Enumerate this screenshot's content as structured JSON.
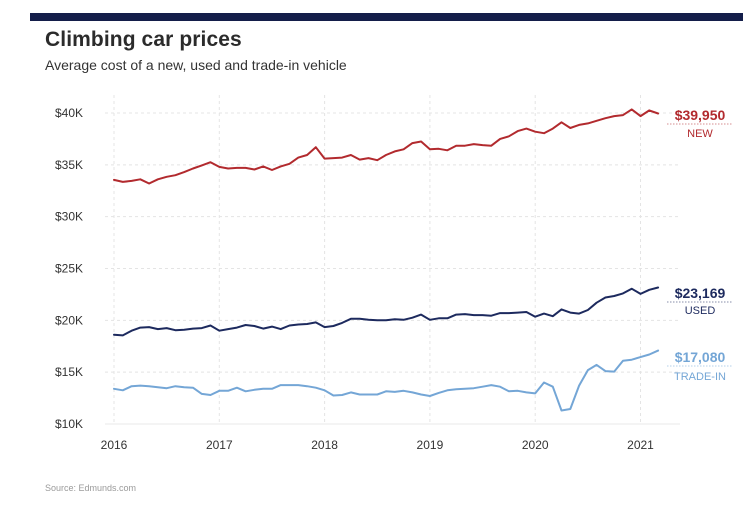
{
  "header": {
    "title": "Climbing car prices",
    "subtitle": "Average cost of a new, used and trade-in vehicle"
  },
  "footer": {
    "source": "Source: Edmunds.com"
  },
  "colors": {
    "topbar": "#141e4a",
    "new": "#b22a2e",
    "used": "#1d2a5e",
    "trade_in": "#74a6d6",
    "grid": "#e4e4e4"
  },
  "chart_data": {
    "type": "line",
    "title": "Climbing car prices",
    "subtitle": "Average cost of a new, used and trade-in vehicle",
    "xlabel": "",
    "ylabel": "",
    "x_start": "2016-01",
    "x_frequency": "monthly",
    "x_tick_labels": [
      "2016",
      "2017",
      "2018",
      "2019",
      "2020",
      "2021"
    ],
    "y_tick_values": [
      10000,
      15000,
      20000,
      25000,
      30000,
      35000,
      40000
    ],
    "y_tick_labels": [
      "$10K",
      "$15K",
      "$20K",
      "$25K",
      "$30K",
      "$35K",
      "$40K"
    ],
    "ylim": [
      10000,
      41000
    ],
    "grid": true,
    "legend": "inline-end-labels",
    "series": [
      {
        "name": "NEW",
        "end_label": "$39,950",
        "values": [
          33550,
          33350,
          33450,
          33600,
          33200,
          33600,
          33850,
          34000,
          34300,
          34650,
          34950,
          35250,
          34800,
          34650,
          34700,
          34700,
          34550,
          34850,
          34500,
          34850,
          35100,
          35700,
          35950,
          36700,
          35600,
          35650,
          35700,
          35950,
          35500,
          35650,
          35450,
          35950,
          36300,
          36500,
          37100,
          37250,
          36500,
          36550,
          36400,
          36850,
          36850,
          37000,
          36900,
          36850,
          37500,
          37750,
          38250,
          38500,
          38200,
          38050,
          38500,
          39100,
          38550,
          38850,
          39000,
          39250,
          39500,
          39700,
          39800,
          40350,
          39700,
          40250,
          39950
        ]
      },
      {
        "name": "USED",
        "end_label": "$23,169",
        "values": [
          18600,
          18550,
          19000,
          19300,
          19350,
          19150,
          19250,
          19050,
          19100,
          19200,
          19250,
          19500,
          19000,
          19150,
          19300,
          19550,
          19450,
          19200,
          19400,
          19150,
          19500,
          19600,
          19650,
          19800,
          19350,
          19450,
          19750,
          20150,
          20150,
          20050,
          20000,
          20000,
          20100,
          20050,
          20250,
          20550,
          20050,
          20200,
          20200,
          20550,
          20600,
          20500,
          20500,
          20450,
          20700,
          20700,
          20750,
          20800,
          20350,
          20650,
          20400,
          21050,
          20750,
          20650,
          21000,
          21700,
          22200,
          22350,
          22600,
          23050,
          22550,
          22950,
          23169
        ]
      },
      {
        "name": "TRADE-IN",
        "end_label": "$17,080",
        "values": [
          13400,
          13250,
          13650,
          13700,
          13650,
          13550,
          13450,
          13650,
          13550,
          13500,
          12900,
          12800,
          13200,
          13200,
          13500,
          13150,
          13300,
          13400,
          13400,
          13750,
          13750,
          13750,
          13650,
          13500,
          13250,
          12750,
          12800,
          13050,
          12850,
          12850,
          12850,
          13150,
          13100,
          13200,
          13050,
          12850,
          12700,
          13000,
          13250,
          13350,
          13400,
          13450,
          13600,
          13750,
          13600,
          13150,
          13200,
          13050,
          12950,
          14000,
          13600,
          11300,
          11450,
          13700,
          15200,
          15700,
          15100,
          15050,
          16100,
          16200,
          16450,
          16700,
          17080
        ]
      }
    ]
  }
}
